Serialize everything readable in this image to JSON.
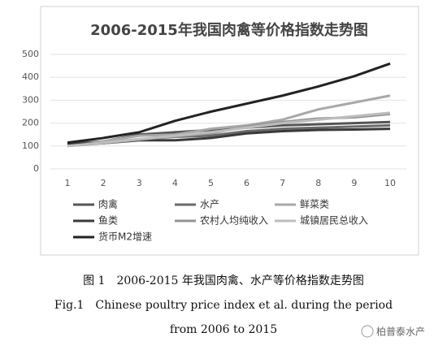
{
  "chart_data": {
    "type": "line",
    "title": "2006-2015年我国肉禽等价格指数走势图",
    "categories": [
      "1",
      "2",
      "3",
      "4",
      "5",
      "6",
      "7",
      "8",
      "9",
      "10"
    ],
    "ylim": [
      0,
      500
    ],
    "yticks": [
      0,
      100,
      200,
      300,
      400,
      500
    ],
    "grid": true,
    "series": [
      {
        "name": "肉禽",
        "color": "#555555",
        "values": [
          110,
          120,
          150,
          160,
          170,
          180,
          190,
          195,
          200,
          205
        ]
      },
      {
        "name": "水产",
        "color": "#6a6a6a",
        "values": [
          105,
          115,
          130,
          140,
          145,
          165,
          175,
          180,
          185,
          190
        ]
      },
      {
        "name": "鲜菜类",
        "color": "#a8a8a8",
        "values": [
          100,
          120,
          145,
          150,
          175,
          190,
          215,
          260,
          290,
          320
        ]
      },
      {
        "name": "鱼类",
        "color": "#3a3a3a",
        "values": [
          108,
          112,
          125,
          125,
          135,
          155,
          165,
          170,
          172,
          175
        ]
      },
      {
        "name": "农村人均纯收入",
        "color": "#939393",
        "values": [
          100,
          112,
          128,
          142,
          155,
          185,
          205,
          220,
          225,
          240
        ]
      },
      {
        "name": "城镇居民总收入",
        "color": "#bdbdbd",
        "values": [
          100,
          115,
          130,
          145,
          160,
          180,
          200,
          215,
          230,
          245
        ]
      },
      {
        "name": "货币M2增速",
        "color": "#222222",
        "values": [
          115,
          135,
          160,
          210,
          250,
          285,
          320,
          360,
          405,
          460
        ]
      }
    ]
  },
  "caption": {
    "cn": "图 1　2006-2015 年我国肉禽、水产等价格指数走势图",
    "en": [
      "Fig.1　Chinese poultry price index et al. during the period",
      "from 2006 to 2015"
    ]
  },
  "watermark": "柏普泰水产"
}
